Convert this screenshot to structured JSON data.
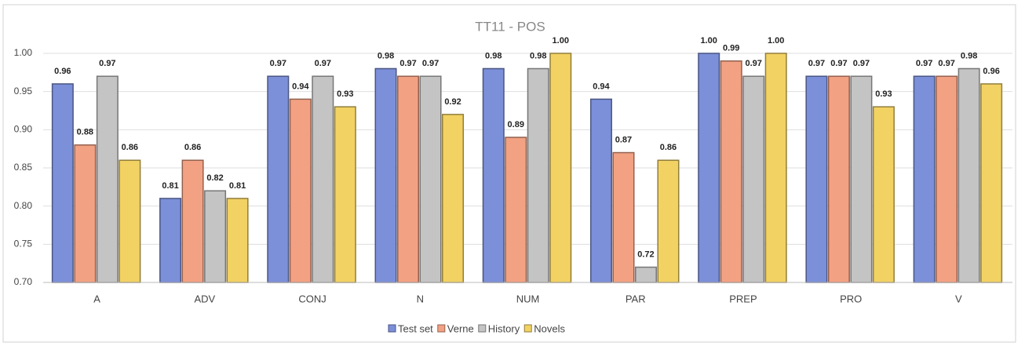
{
  "chart_data": {
    "type": "bar",
    "title": "TT11 - POS",
    "categories": [
      "A",
      "ADV",
      "CONJ",
      "N",
      "NUM",
      "PAR",
      "PREP",
      "PRO",
      "V"
    ],
    "series": [
      {
        "name": "Test set",
        "color": "#7c8fd9",
        "values": [
          0.96,
          0.81,
          0.97,
          0.98,
          0.98,
          0.94,
          1.0,
          0.97,
          0.97
        ],
        "value_labels": [
          "0.96",
          "0.81",
          "0.97",
          "0.98",
          "0.98",
          "0.94",
          "1.00",
          "0.97",
          "0.97"
        ]
      },
      {
        "name": "Verne",
        "color": "#f3a183",
        "values": [
          0.88,
          0.86,
          0.94,
          0.97,
          0.89,
          0.87,
          0.99,
          0.97,
          0.97
        ],
        "value_labels": [
          "0.88",
          "0.86",
          "0.94",
          "0.97",
          "0.89",
          "0.87",
          "0.99",
          "0.97",
          "0.97"
        ]
      },
      {
        "name": "History",
        "color": "#c4c4c4",
        "values": [
          0.97,
          0.82,
          0.97,
          0.97,
          0.98,
          0.72,
          0.97,
          0.97,
          0.98
        ],
        "value_labels": [
          "0.97",
          "0.82",
          "0.97",
          "0.97",
          "0.98",
          "0.72",
          "0.97",
          "0.97",
          "0.98"
        ]
      },
      {
        "name": "Novels",
        "color": "#f2d263",
        "values": [
          0.86,
          0.81,
          0.93,
          0.92,
          1.0,
          0.86,
          1.0,
          0.93,
          0.96
        ],
        "value_labels": [
          "0.86",
          "0.81",
          "0.93",
          "0.92",
          "1.00",
          "0.86",
          "1.00",
          "0.93",
          "0.96"
        ]
      }
    ],
    "ylim": [
      0.7,
      1.0
    ],
    "yticks": [
      {
        "value": 0.7,
        "label": "0.70"
      },
      {
        "value": 0.75,
        "label": "0.75"
      },
      {
        "value": 0.8,
        "label": "0.80"
      },
      {
        "value": 0.85,
        "label": "0.85"
      },
      {
        "value": 0.9,
        "label": "0.90"
      },
      {
        "value": 0.95,
        "label": "0.95"
      },
      {
        "value": 1.0,
        "label": "1.00"
      }
    ],
    "grid": true,
    "legend": "bottom"
  }
}
